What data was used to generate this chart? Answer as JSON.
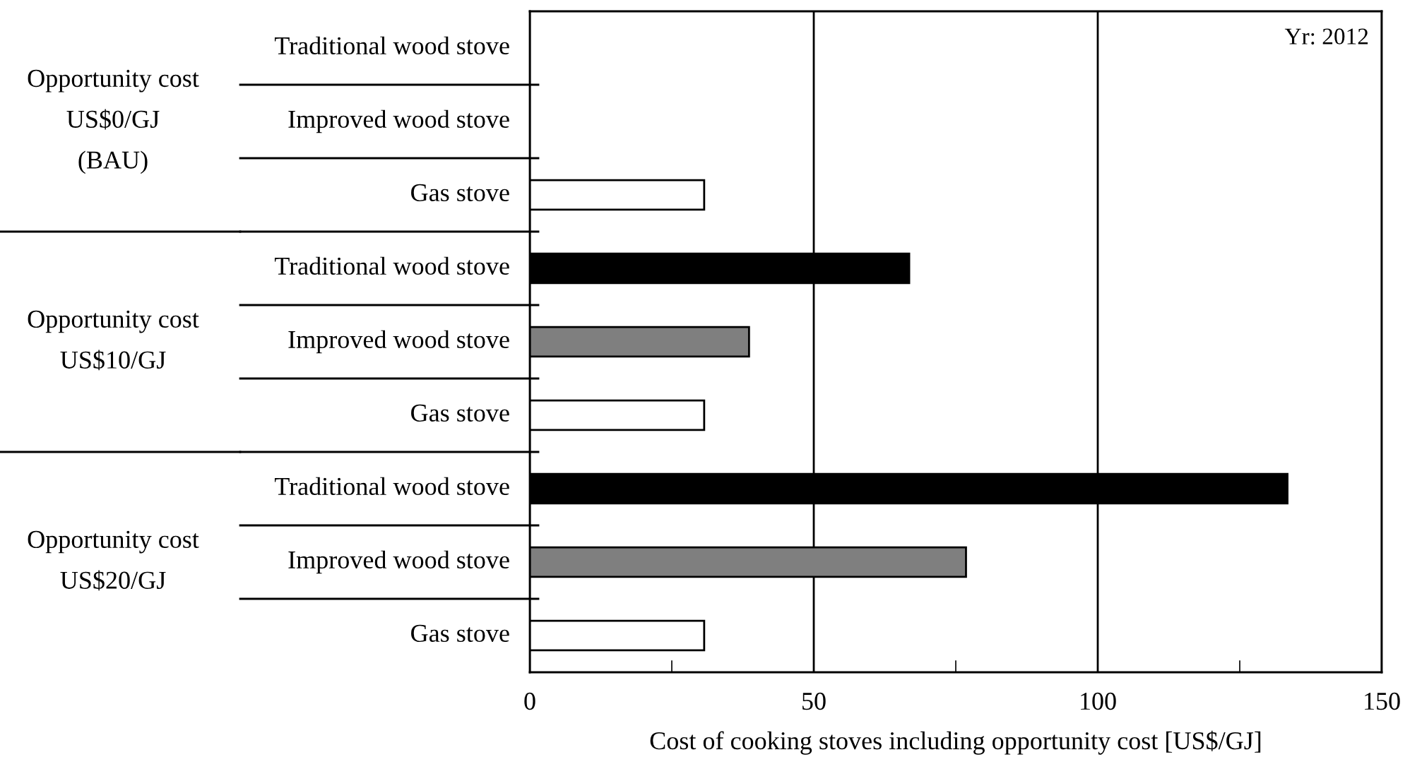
{
  "chart_data": {
    "type": "bar",
    "orientation": "horizontal",
    "categories": [
      "Traditional wood stove",
      "Improved wood stove",
      "Gas stove",
      "Traditional wood stove",
      "Improved wood stove",
      "Gas stove",
      "Traditional wood stove",
      "Improved wood stove",
      "Gas stove"
    ],
    "values": [
      0,
      0,
      30.7,
      66.8,
      38.6,
      30.7,
      133.4,
      76.8,
      30.7
    ],
    "colors": [
      "#000000",
      "#7f7f7f",
      "#ffffff",
      "#000000",
      "#7f7f7f",
      "#ffffff",
      "#000000",
      "#7f7f7f",
      "#ffffff"
    ],
    "xlim": [
      0,
      150
    ],
    "xticks": [
      0,
      {
        "value": 25,
        "label": null
      },
      50,
      {
        "value": 75,
        "label": null
      },
      100,
      {
        "value": 125,
        "label": null
      },
      150
    ],
    "xlabel": "Cost of cooking stoves including opportunity cost [US$/GJ]",
    "grid": "x",
    "annotations": [
      "Opportunity cost\nUS$0/GJ\n(BAU)",
      "Opportunity cost\nUS$10/GJ",
      "Opportunity cost\nUS$20/GJ",
      "Yr: 2012"
    ]
  }
}
